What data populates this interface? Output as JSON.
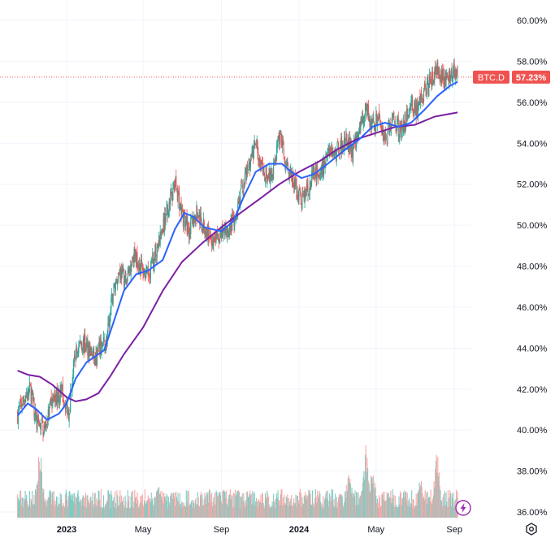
{
  "chart_data": {
    "type": "candlestick",
    "symbol": "BTC.D",
    "last_value": "57.23%",
    "last_value_num": 57.23,
    "ylim": [
      35.9,
      61.0
    ],
    "y_ticks": [
      {
        "value": 60,
        "label": "60.00%"
      },
      {
        "value": 58,
        "label": "58.00%"
      },
      {
        "value": 56,
        "label": "56.00%"
      },
      {
        "value": 54,
        "label": "54.00%"
      },
      {
        "value": 52,
        "label": "52.00%"
      },
      {
        "value": 50,
        "label": "50.00%"
      },
      {
        "value": 48,
        "label": "48.00%"
      },
      {
        "value": 46,
        "label": "46.00%"
      },
      {
        "value": 44,
        "label": "44.00%"
      },
      {
        "value": 42,
        "label": "42.00%"
      },
      {
        "value": 40,
        "label": "40.00%"
      },
      {
        "value": 38,
        "label": "38.00%"
      },
      {
        "value": 36,
        "label": "36.00%"
      }
    ],
    "x_ticks": [
      {
        "date": "2023-01-01",
        "label": "2023",
        "bold": true
      },
      {
        "date": "2023-05-01",
        "label": "May",
        "bold": false
      },
      {
        "date": "2023-09-01",
        "label": "Sep",
        "bold": false
      },
      {
        "date": "2024-01-01",
        "label": "2024",
        "bold": true
      },
      {
        "date": "2024-05-01",
        "label": "May",
        "bold": false
      },
      {
        "date": "2024-09-01",
        "label": "Sep",
        "bold": false
      }
    ],
    "x_range": [
      "2022-10-16",
      "2024-11-01"
    ],
    "grid": true,
    "price_anchors": [
      [
        "2022-10-16",
        40.8
      ],
      [
        "2022-10-25",
        41.5
      ],
      [
        "2022-11-05",
        42.0
      ],
      [
        "2022-11-15",
        40.3
      ],
      [
        "2022-11-28",
        40.1
      ],
      [
        "2022-12-10",
        41.5
      ],
      [
        "2022-12-25",
        41.8
      ],
      [
        "2023-01-04",
        40.9
      ],
      [
        "2023-01-14",
        43.5
      ],
      [
        "2023-01-22",
        44.3
      ],
      [
        "2023-02-05",
        44.0
      ],
      [
        "2023-02-15",
        43.3
      ],
      [
        "2023-02-22",
        44.0
      ],
      [
        "2023-03-05",
        44.3
      ],
      [
        "2023-03-15",
        46.8
      ],
      [
        "2023-03-25",
        47.8
      ],
      [
        "2023-04-05",
        47.2
      ],
      [
        "2023-04-15",
        48.6
      ],
      [
        "2023-04-28",
        48.0
      ],
      [
        "2023-05-08",
        47.5
      ],
      [
        "2023-05-20",
        48.6
      ],
      [
        "2023-06-01",
        49.8
      ],
      [
        "2023-06-15",
        51.5
      ],
      [
        "2023-06-22",
        52.0
      ],
      [
        "2023-07-01",
        50.5
      ],
      [
        "2023-07-12",
        49.8
      ],
      [
        "2023-07-25",
        50.6
      ],
      [
        "2023-08-05",
        49.8
      ],
      [
        "2023-08-20",
        49.3
      ],
      [
        "2023-09-05",
        49.6
      ],
      [
        "2023-09-20",
        50.2
      ],
      [
        "2023-10-01",
        51.5
      ],
      [
        "2023-10-15",
        53.0
      ],
      [
        "2023-10-25",
        54.0
      ],
      [
        "2023-11-05",
        52.5
      ],
      [
        "2023-11-20",
        52.3
      ],
      [
        "2023-12-02",
        54.5
      ],
      [
        "2023-12-12",
        53.0
      ],
      [
        "2023-12-25",
        52.0
      ],
      [
        "2024-01-05",
        51.2
      ],
      [
        "2024-01-15",
        51.8
      ],
      [
        "2024-01-25",
        52.5
      ],
      [
        "2024-02-05",
        52.5
      ],
      [
        "2024-02-15",
        53.8
      ],
      [
        "2024-02-25",
        53.5
      ],
      [
        "2024-03-05",
        53.8
      ],
      [
        "2024-03-15",
        54.2
      ],
      [
        "2024-03-25",
        53.5
      ],
      [
        "2024-04-05",
        54.8
      ],
      [
        "2024-04-15",
        55.8
      ],
      [
        "2024-04-25",
        54.8
      ],
      [
        "2024-05-05",
        55.2
      ],
      [
        "2024-05-15",
        54.2
      ],
      [
        "2024-05-28",
        55.2
      ],
      [
        "2024-06-10",
        54.5
      ],
      [
        "2024-06-25",
        56.0
      ],
      [
        "2024-07-05",
        55.5
      ],
      [
        "2024-07-15",
        56.5
      ],
      [
        "2024-07-25",
        57.0
      ],
      [
        "2024-08-05",
        57.5
      ],
      [
        "2024-08-15",
        57.0
      ],
      [
        "2024-08-25",
        57.3
      ],
      [
        "2024-09-01",
        57.5
      ],
      [
        "2024-09-06",
        57.23
      ]
    ],
    "ma_fast": {
      "color": "#2962ff",
      "points": [
        [
          "2022-10-16",
          40.7
        ],
        [
          "2022-11-01",
          41.3
        ],
        [
          "2022-11-15",
          41.0
        ],
        [
          "2022-12-01",
          40.5
        ],
        [
          "2022-12-20",
          40.8
        ],
        [
          "2023-01-01",
          41.3
        ],
        [
          "2023-01-15",
          42.5
        ],
        [
          "2023-02-01",
          43.3
        ],
        [
          "2023-02-15",
          43.6
        ],
        [
          "2023-03-01",
          43.9
        ],
        [
          "2023-03-15",
          45.2
        ],
        [
          "2023-04-01",
          46.8
        ],
        [
          "2023-04-20",
          47.6
        ],
        [
          "2023-05-10",
          47.8
        ],
        [
          "2023-06-01",
          48.3
        ],
        [
          "2023-06-20",
          49.8
        ],
        [
          "2023-07-05",
          50.6
        ],
        [
          "2023-07-20",
          50.4
        ],
        [
          "2023-08-05",
          49.9
        ],
        [
          "2023-09-01",
          49.7
        ],
        [
          "2023-09-20",
          50.2
        ],
        [
          "2023-10-05",
          51.3
        ],
        [
          "2023-10-25",
          52.6
        ],
        [
          "2023-11-15",
          53.0
        ],
        [
          "2023-12-05",
          53.0
        ],
        [
          "2023-12-20",
          52.6
        ],
        [
          "2024-01-05",
          52.3
        ],
        [
          "2024-01-25",
          52.5
        ],
        [
          "2024-02-15",
          53.0
        ],
        [
          "2024-03-10",
          53.6
        ],
        [
          "2024-04-05",
          54.2
        ],
        [
          "2024-04-25",
          54.8
        ],
        [
          "2024-05-15",
          55.0
        ],
        [
          "2024-06-05",
          54.8
        ],
        [
          "2024-06-25",
          55.0
        ],
        [
          "2024-07-15",
          55.6
        ],
        [
          "2024-08-05",
          56.3
        ],
        [
          "2024-08-25",
          56.8
        ],
        [
          "2024-09-06",
          57.0
        ]
      ]
    },
    "ma_slow": {
      "color": "#7b1fa2",
      "points": [
        [
          "2022-10-16",
          42.9
        ],
        [
          "2022-11-01",
          42.7
        ],
        [
          "2022-11-20",
          42.6
        ],
        [
          "2022-12-10",
          42.2
        ],
        [
          "2023-01-01",
          41.6
        ],
        [
          "2023-01-15",
          41.4
        ],
        [
          "2023-02-01",
          41.5
        ],
        [
          "2023-02-20",
          41.8
        ],
        [
          "2023-03-10",
          42.6
        ],
        [
          "2023-04-01",
          43.7
        ],
        [
          "2023-05-01",
          45.0
        ],
        [
          "2023-06-01",
          46.8
        ],
        [
          "2023-07-01",
          48.2
        ],
        [
          "2023-08-01",
          49.1
        ],
        [
          "2023-09-01",
          49.9
        ],
        [
          "2023-10-01",
          50.6
        ],
        [
          "2023-11-01",
          51.3
        ],
        [
          "2023-12-01",
          52.0
        ],
        [
          "2024-01-01",
          52.6
        ],
        [
          "2024-02-01",
          53.1
        ],
        [
          "2024-03-01",
          53.7
        ],
        [
          "2024-04-01",
          54.2
        ],
        [
          "2024-05-01",
          54.5
        ],
        [
          "2024-06-01",
          54.8
        ],
        [
          "2024-07-01",
          54.9
        ],
        [
          "2024-08-01",
          55.3
        ],
        [
          "2024-09-06",
          55.5
        ]
      ]
    },
    "volume_spikes": [
      [
        "2022-11-20",
        1.0
      ],
      [
        "2023-05-25",
        0.55
      ],
      [
        "2024-03-20",
        0.75
      ],
      [
        "2024-04-15",
        1.0
      ],
      [
        "2024-04-25",
        0.8
      ],
      [
        "2024-06-15",
        0.45
      ],
      [
        "2024-07-10",
        0.6
      ],
      [
        "2024-08-05",
        0.95
      ]
    ],
    "colors": {
      "up": "#26a69a",
      "down": "#ef5350",
      "volume_up": "#80cbc4",
      "volume_down": "#f7a7a5",
      "last_price_line": "#ef5350",
      "grid": "#f0f3fa",
      "axis_text": "#131722"
    }
  },
  "ui": {
    "lightning_icon": "lightning-icon",
    "settings_icon": "gear-icon"
  }
}
